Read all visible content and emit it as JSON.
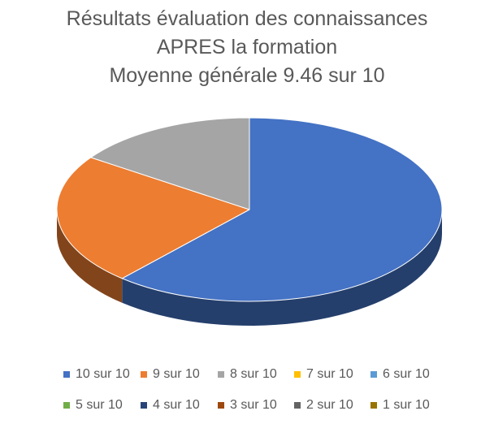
{
  "chart_data": {
    "type": "pie",
    "title_lines": [
      "Résultats évaluation des connaissances",
      "APRES la formation",
      "Moyenne générale 9.46 sur 10"
    ],
    "categories": [
      "10 sur 10",
      "9 sur 10",
      "8 sur 10",
      "7 sur 10",
      "6 sur 10",
      "5 sur 10",
      "4 sur 10",
      "3 sur 10",
      "2 sur 10",
      "1 sur 10"
    ],
    "values": [
      61.5,
      23.1,
      15.4,
      0,
      0,
      0,
      0,
      0,
      0,
      0
    ],
    "colors": [
      "#4472C4",
      "#ED7D31",
      "#A5A5A5",
      "#FFC000",
      "#5B9BD5",
      "#70AD47",
      "#264478",
      "#9E480E",
      "#636363",
      "#997300"
    ],
    "legend_position": "bottom",
    "style": "3d"
  }
}
